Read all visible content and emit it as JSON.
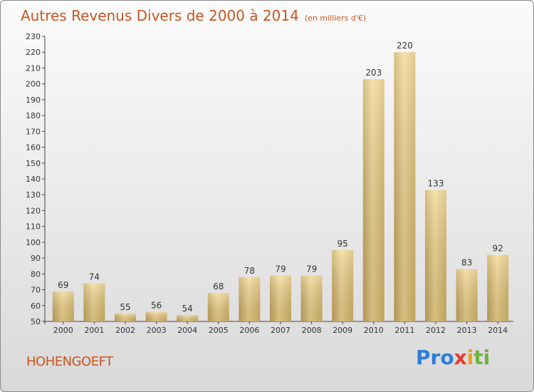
{
  "header": {
    "title": "Autres Revenus Divers de 2000 à 2014",
    "unit": "(en milliers d'€)"
  },
  "footer": {
    "commune": "HOHENGOEFT",
    "logo_letters": [
      {
        "ch": "P",
        "color": "#2f7ed8"
      },
      {
        "ch": "r",
        "color": "#2f7ed8"
      },
      {
        "ch": "o",
        "color": "#2f7ed8"
      },
      {
        "ch": "x",
        "color": "#e43b2f"
      },
      {
        "ch": "i",
        "color": "#f0a020"
      },
      {
        "ch": "t",
        "color": "#6cb33f"
      },
      {
        "ch": "i",
        "color": "#6cb33f"
      }
    ]
  },
  "chart_data": {
    "type": "bar",
    "title": "Autres Revenus Divers de 2000 à 2014",
    "xlabel": "",
    "ylabel": "",
    "ylim": [
      50,
      230
    ],
    "ytick_step": 10,
    "grid": false,
    "categories": [
      "2000",
      "2001",
      "2002",
      "2003",
      "2004",
      "2005",
      "2006",
      "2007",
      "2008",
      "2009",
      "2010",
      "2011",
      "2012",
      "2013",
      "2014"
    ],
    "values": [
      69,
      74,
      55,
      56,
      54,
      68,
      78,
      79,
      79,
      95,
      203,
      220,
      133,
      83,
      92
    ],
    "bar_color": "#e4c67f"
  }
}
